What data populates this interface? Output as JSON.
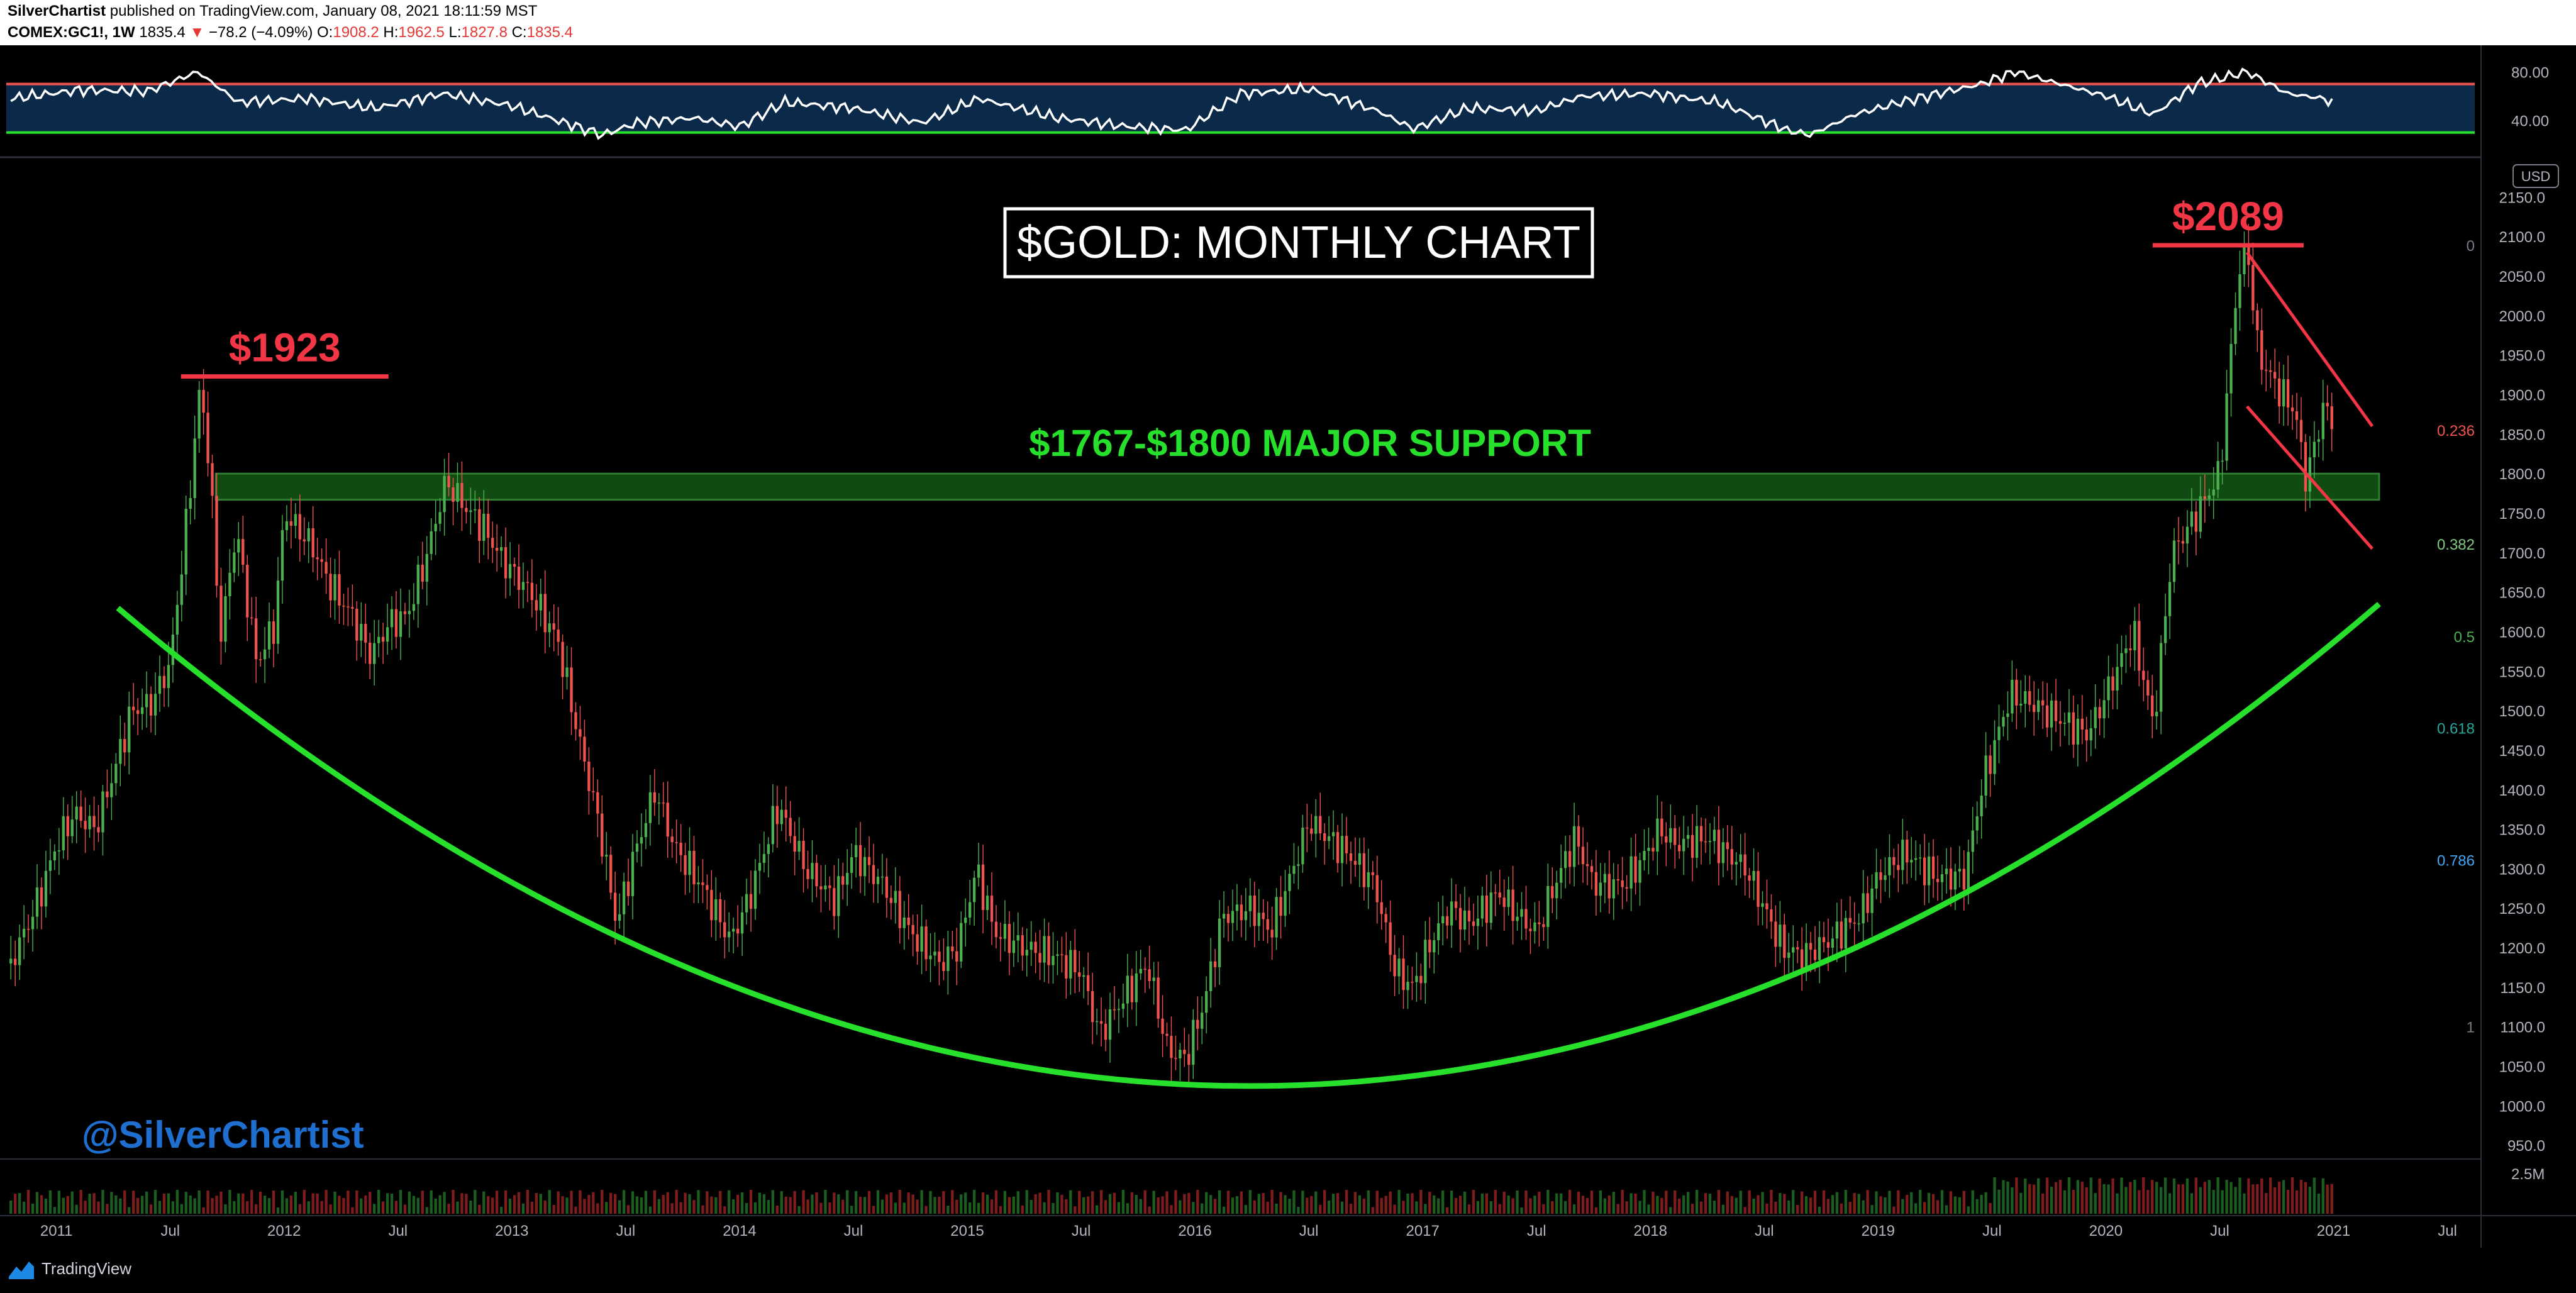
{
  "header": {
    "author": "SilverChartist",
    "published_text": "published on TradingView.com, January 08, 2021 18:11:59 MST",
    "symbol": "COMEX:GC1!, 1W",
    "last": "1835.4",
    "change_arrow": "▼",
    "change": "−78.2 (−4.09%)",
    "open_label": "O:",
    "open": "1908.2",
    "high_label": "H:",
    "high": "1962.5",
    "low_label": "L:",
    "low": "1827.8",
    "close_label": "C:",
    "close": "1835.4"
  },
  "footer": {
    "brand": "TradingView"
  },
  "colors": {
    "up": "#26a69a",
    "up_bright": "#4caf50",
    "down": "#ef5350",
    "annotation_red": "#f23645",
    "annotation_green": "#26e02b",
    "title_box": "#ffffff",
    "watermark": "#1e6fd0",
    "rsi_fill": "#0b2a4a"
  },
  "chart_data": {
    "type": "candlestick",
    "title": "$GOLD: MONTHLY CHART",
    "watermark": "@SilverChartist",
    "currency": "USD",
    "y_axis": {
      "ticks": [
        "950.0",
        "1000.0",
        "1050.0",
        "1100.0",
        "1150.0",
        "1200.0",
        "1250.0",
        "1300.0",
        "1350.0",
        "1400.0",
        "1450.0",
        "1500.0",
        "1550.0",
        "1600.0",
        "1650.0",
        "1700.0",
        "1750.0",
        "1800.0",
        "1850.0",
        "1900.0",
        "1950.0",
        "2000.0",
        "2050.0",
        "2100.0",
        "2150.0"
      ],
      "range": [
        935,
        2175
      ]
    },
    "x_axis": {
      "labels": [
        "2011",
        "Jul",
        "2012",
        "Jul",
        "2013",
        "Jul",
        "2014",
        "Jul",
        "2015",
        "Jul",
        "2016",
        "Jul",
        "2017",
        "Jul",
        "2018",
        "Jul",
        "2019",
        "Jul",
        "2020",
        "Jul",
        "2021",
        "Jul"
      ],
      "range": [
        2010.78,
        2021.62
      ]
    },
    "price_path": [
      [
        2010.8,
        1180
      ],
      [
        2010.92,
        1260
      ],
      [
        2011.0,
        1330
      ],
      [
        2011.08,
        1370
      ],
      [
        2011.17,
        1350
      ],
      [
        2011.25,
        1420
      ],
      [
        2011.33,
        1500
      ],
      [
        2011.42,
        1510
      ],
      [
        2011.5,
        1560
      ],
      [
        2011.58,
        1760
      ],
      [
        2011.63,
        1910
      ],
      [
        2011.67,
        1820
      ],
      [
        2011.72,
        1590
      ],
      [
        2011.79,
        1730
      ],
      [
        2011.88,
        1560
      ],
      [
        2011.96,
        1610
      ],
      [
        2012.0,
        1750
      ],
      [
        2012.12,
        1710
      ],
      [
        2012.2,
        1660
      ],
      [
        2012.3,
        1620
      ],
      [
        2012.38,
        1570
      ],
      [
        2012.46,
        1610
      ],
      [
        2012.54,
        1620
      ],
      [
        2012.63,
        1700
      ],
      [
        2012.71,
        1790
      ],
      [
        2012.79,
        1760
      ],
      [
        2012.88,
        1730
      ],
      [
        2012.96,
        1690
      ],
      [
        2013.08,
        1650
      ],
      [
        2013.2,
        1590
      ],
      [
        2013.29,
        1470
      ],
      [
        2013.38,
        1360
      ],
      [
        2013.46,
        1230
      ],
      [
        2013.54,
        1320
      ],
      [
        2013.63,
        1400
      ],
      [
        2013.71,
        1330
      ],
      [
        2013.83,
        1280
      ],
      [
        2013.96,
        1210
      ],
      [
        2014.04,
        1260
      ],
      [
        2014.17,
        1380
      ],
      [
        2014.29,
        1300
      ],
      [
        2014.42,
        1260
      ],
      [
        2014.5,
        1320
      ],
      [
        2014.63,
        1280
      ],
      [
        2014.75,
        1220
      ],
      [
        2014.88,
        1180
      ],
      [
        2014.96,
        1200
      ],
      [
        2015.04,
        1300
      ],
      [
        2015.12,
        1220
      ],
      [
        2015.25,
        1200
      ],
      [
        2015.38,
        1190
      ],
      [
        2015.5,
        1170
      ],
      [
        2015.58,
        1090
      ],
      [
        2015.67,
        1130
      ],
      [
        2015.79,
        1180
      ],
      [
        2015.88,
        1070
      ],
      [
        2015.96,
        1060
      ],
      [
        2016.04,
        1130
      ],
      [
        2016.12,
        1240
      ],
      [
        2016.25,
        1250
      ],
      [
        2016.33,
        1220
      ],
      [
        2016.42,
        1290
      ],
      [
        2016.5,
        1360
      ],
      [
        2016.58,
        1340
      ],
      [
        2016.67,
        1320
      ],
      [
        2016.79,
        1280
      ],
      [
        2016.88,
        1170
      ],
      [
        2016.96,
        1150
      ],
      [
        2017.04,
        1210
      ],
      [
        2017.12,
        1250
      ],
      [
        2017.21,
        1230
      ],
      [
        2017.33,
        1270
      ],
      [
        2017.42,
        1240
      ],
      [
        2017.5,
        1220
      ],
      [
        2017.58,
        1280
      ],
      [
        2017.67,
        1340
      ],
      [
        2017.75,
        1280
      ],
      [
        2017.88,
        1280
      ],
      [
        2017.96,
        1310
      ],
      [
        2018.04,
        1350
      ],
      [
        2018.12,
        1330
      ],
      [
        2018.25,
        1340
      ],
      [
        2018.42,
        1300
      ],
      [
        2018.5,
        1250
      ],
      [
        2018.58,
        1200
      ],
      [
        2018.67,
        1190
      ],
      [
        2018.79,
        1210
      ],
      [
        2018.92,
        1240
      ],
      [
        2019.0,
        1290
      ],
      [
        2019.12,
        1320
      ],
      [
        2019.25,
        1290
      ],
      [
        2019.38,
        1290
      ],
      [
        2019.46,
        1410
      ],
      [
        2019.58,
        1520
      ],
      [
        2019.67,
        1510
      ],
      [
        2019.79,
        1490
      ],
      [
        2019.92,
        1470
      ],
      [
        2020.0,
        1520
      ],
      [
        2020.12,
        1600
      ],
      [
        2020.21,
        1480
      ],
      [
        2020.29,
        1700
      ],
      [
        2020.38,
        1740
      ],
      [
        2020.5,
        1800
      ],
      [
        2020.58,
        2050
      ],
      [
        2020.62,
        2090
      ],
      [
        2020.67,
        1950
      ],
      [
        2020.75,
        1910
      ],
      [
        2020.83,
        1880
      ],
      [
        2020.88,
        1790
      ],
      [
        2020.96,
        1890
      ],
      [
        2021.01,
        1850
      ]
    ],
    "rsi": {
      "levels": [
        "80.00",
        "40.00"
      ],
      "overbought": 70,
      "oversold": 30,
      "path": [
        [
          2010.8,
          58
        ],
        [
          2011.1,
          65
        ],
        [
          2011.4,
          64
        ],
        [
          2011.62,
          80
        ],
        [
          2011.8,
          55
        ],
        [
          2012.1,
          58
        ],
        [
          2012.4,
          50
        ],
        [
          2012.7,
          62
        ],
        [
          2013.0,
          52
        ],
        [
          2013.3,
          34
        ],
        [
          2013.4,
          28
        ],
        [
          2013.55,
          38
        ],
        [
          2013.8,
          42
        ],
        [
          2014.0,
          35
        ],
        [
          2014.2,
          55
        ],
        [
          2014.5,
          50
        ],
        [
          2014.8,
          38
        ],
        [
          2015.05,
          58
        ],
        [
          2015.4,
          42
        ],
        [
          2015.7,
          35
        ],
        [
          2015.96,
          32
        ],
        [
          2016.2,
          62
        ],
        [
          2016.5,
          66
        ],
        [
          2016.8,
          48
        ],
        [
          2016.96,
          33
        ],
        [
          2017.2,
          50
        ],
        [
          2017.5,
          48
        ],
        [
          2017.7,
          60
        ],
        [
          2018.0,
          62
        ],
        [
          2018.3,
          55
        ],
        [
          2018.6,
          32
        ],
        [
          2018.7,
          28
        ],
        [
          2018.9,
          45
        ],
        [
          2019.1,
          55
        ],
        [
          2019.45,
          70
        ],
        [
          2019.6,
          80
        ],
        [
          2019.8,
          70
        ],
        [
          2020.0,
          60
        ],
        [
          2020.21,
          45
        ],
        [
          2020.4,
          70
        ],
        [
          2020.62,
          80
        ],
        [
          2020.8,
          62
        ],
        [
          2020.96,
          58
        ],
        [
          2021.01,
          52
        ]
      ]
    },
    "volume_max_label": "2.5M",
    "fib_levels": [
      {
        "label": "0",
        "price": 2089
      },
      {
        "label": "0.236",
        "price": 1855
      },
      {
        "label": "0.382",
        "price": 1711
      },
      {
        "label": "0.5",
        "price": 1594
      },
      {
        "label": "0.618",
        "price": 1478
      },
      {
        "label": "0.786",
        "price": 1311
      },
      {
        "label": "1",
        "price": 1100
      }
    ],
    "annotations": {
      "peak_2011": {
        "label": "$1923",
        "price": 1923,
        "date": 2011.63
      },
      "peak_2020": {
        "label": "$2089",
        "price": 2089,
        "date": 2020.62
      },
      "support_zone": {
        "label": "$1767-$1800 MAJOR SUPPORT",
        "low": 1767,
        "high": 1800,
        "from": 2011.7,
        "to": 2021.2
      },
      "cup_curve": [
        [
          2011.27,
          1630
        ],
        [
          2016.25,
          1025
        ],
        [
          2021.2,
          1635
        ]
      ],
      "channel_upper": [
        [
          2020.62,
          2080
        ],
        [
          2021.17,
          1860
        ]
      ],
      "channel_lower": [
        [
          2020.62,
          1885
        ],
        [
          2021.17,
          1705
        ]
      ]
    }
  }
}
